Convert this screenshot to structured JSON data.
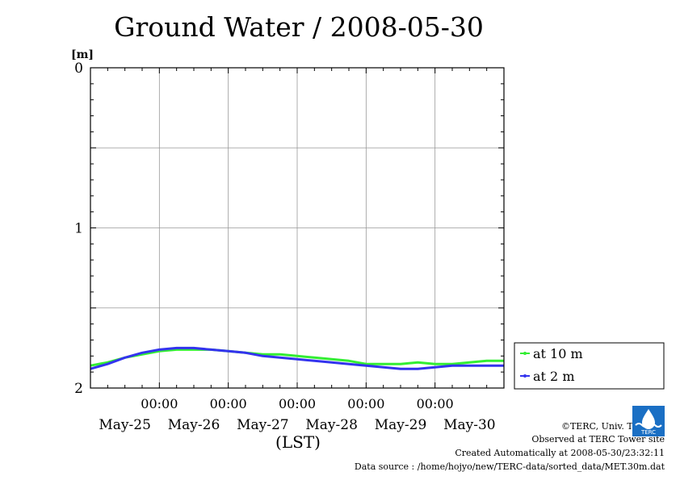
{
  "title": "Ground Water / 2008-05-30",
  "chart_data": {
    "type": "line",
    "title": "Ground Water / 2008-05-30",
    "ylabel": "[m]",
    "xlabel": "(LST)",
    "y_axis_inverted": true,
    "ylim": [
      0,
      2
    ],
    "yticks": [
      0,
      1,
      2
    ],
    "grid": true,
    "x_units": "days",
    "xlim": [
      0,
      6
    ],
    "x_tick_labels": [
      {
        "x": 1,
        "time": "00:00",
        "date": "May-26"
      },
      {
        "x": 2,
        "time": "00:00",
        "date": "May-27"
      },
      {
        "x": 3,
        "time": "00:00",
        "date": "May-28"
      },
      {
        "x": 4,
        "time": "00:00",
        "date": "May-29"
      },
      {
        "x": 5,
        "time": "00:00",
        "date": "May-30"
      }
    ],
    "x_date_labels": [
      {
        "x": 0.5,
        "date": "May-25"
      },
      {
        "x": 1.5,
        "date": "May-26"
      },
      {
        "x": 2.5,
        "date": "May-27"
      },
      {
        "x": 3.5,
        "date": "May-28"
      },
      {
        "x": 4.5,
        "date": "May-29"
      },
      {
        "x": 5.5,
        "date": "May-30"
      }
    ],
    "legend": "right",
    "series": [
      {
        "name": "at 10 m",
        "color": "#33ee33",
        "x": [
          0,
          0.25,
          0.5,
          0.75,
          1.0,
          1.25,
          1.5,
          1.75,
          2.0,
          2.25,
          2.5,
          2.75,
          3.0,
          3.25,
          3.5,
          3.75,
          4.0,
          4.25,
          4.5,
          4.75,
          5.0,
          5.25,
          5.5,
          5.75,
          6.0
        ],
        "y": [
          1.86,
          1.84,
          1.81,
          1.79,
          1.77,
          1.76,
          1.76,
          1.76,
          1.77,
          1.78,
          1.79,
          1.79,
          1.8,
          1.81,
          1.82,
          1.83,
          1.85,
          1.85,
          1.85,
          1.84,
          1.85,
          1.85,
          1.84,
          1.83,
          1.83
        ]
      },
      {
        "name": "at 2 m",
        "color": "#3333ee",
        "x": [
          0,
          0.25,
          0.5,
          0.75,
          1.0,
          1.25,
          1.5,
          1.75,
          2.0,
          2.25,
          2.5,
          2.75,
          3.0,
          3.25,
          3.5,
          3.75,
          4.0,
          4.25,
          4.5,
          4.75,
          5.0,
          5.25,
          5.5,
          5.75,
          6.0
        ],
        "y": [
          1.88,
          1.85,
          1.81,
          1.78,
          1.76,
          1.75,
          1.75,
          1.76,
          1.77,
          1.78,
          1.8,
          1.81,
          1.82,
          1.83,
          1.84,
          1.85,
          1.86,
          1.87,
          1.88,
          1.88,
          1.87,
          1.86,
          1.86,
          1.86,
          1.86
        ]
      }
    ]
  },
  "credits": {
    "copyright": "©TERC, Univ. Tsukuba",
    "observed": "Observed at TERC Tower site",
    "created": "Created Automatically at 2008-05-30/23:32:11",
    "source": "Data source : /home/hojyo/new/TERC-data/sorted_data/MET.30m.dat",
    "logo_text": "TERC"
  }
}
